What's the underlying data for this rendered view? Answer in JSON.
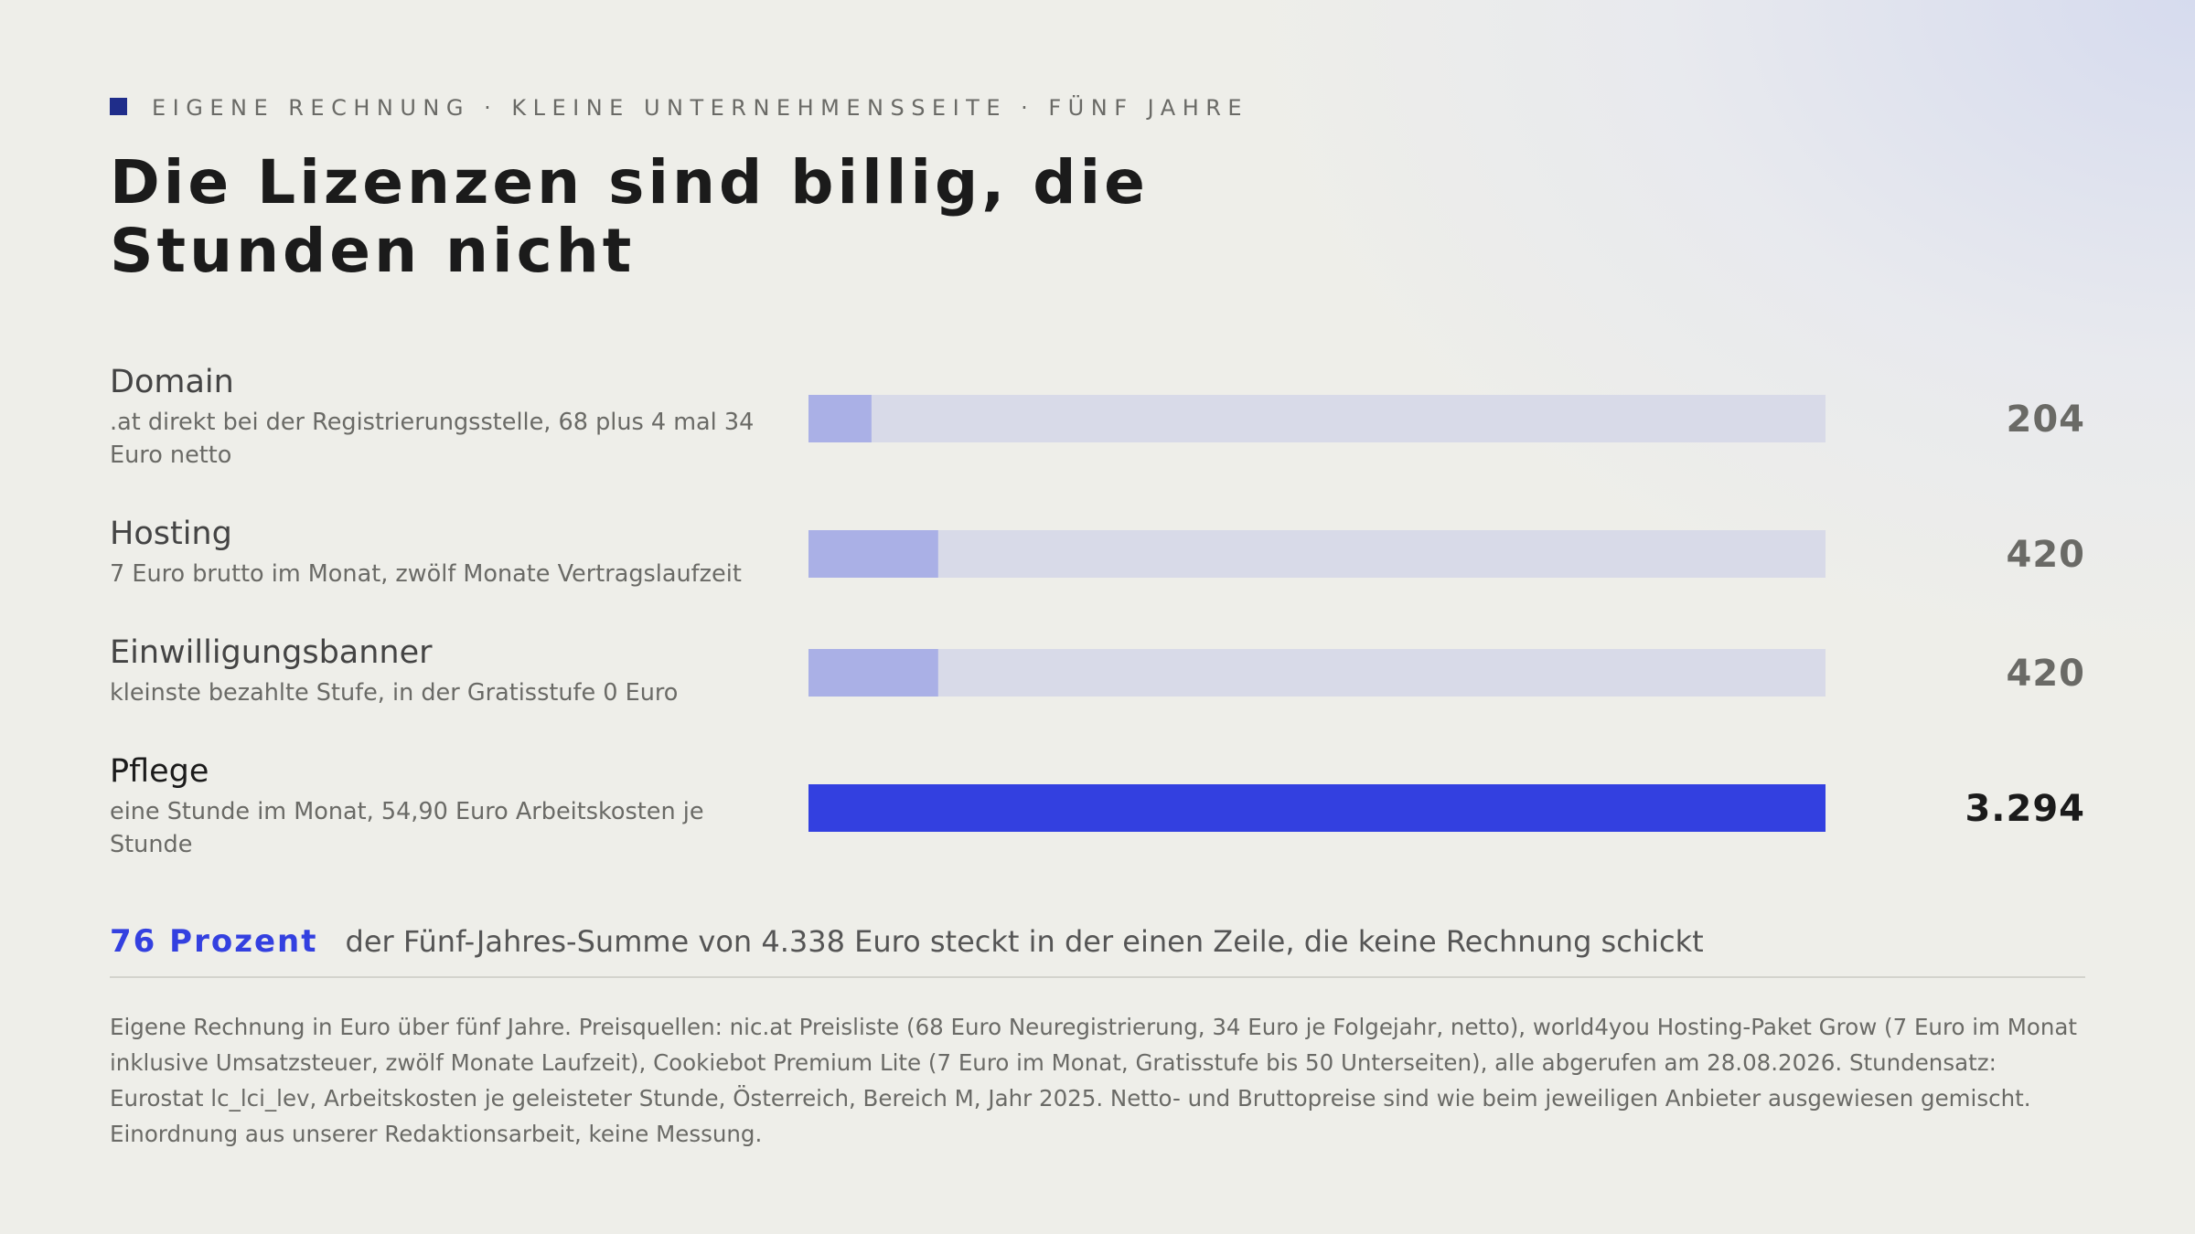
{
  "kicker": "EIGENE RECHNUNG · KLEINE UNTERNEHMENSSEITE · FÜNF JAHRE",
  "title": "Die Lizenzen sind billig, die Stunden nicht",
  "colors": {
    "accent": "#3340e0",
    "accent_dark": "#1f2d8a",
    "bar_light": "#aab0e6",
    "track": "#d8dae8"
  },
  "rows": [
    {
      "label": "Domain",
      "sub": ".at direkt bei der Registrierungsstelle, 68 plus 4 mal 34 Euro netto",
      "value_label": "204"
    },
    {
      "label": "Hosting",
      "sub": "7 Euro brutto im Monat, zwölf Monate Vertragslaufzeit",
      "value_label": "420"
    },
    {
      "label": "Einwilligungsbanner",
      "sub": "kleinste bezahlte Stufe, in der Gratisstufe 0 Euro",
      "value_label": "420"
    },
    {
      "label": "Pflege",
      "sub": "eine Stunde im Monat, 54,90 Euro Arbeitskosten je Stunde",
      "value_label": "3.294"
    }
  ],
  "chart_data": {
    "type": "bar",
    "orientation": "horizontal",
    "categories": [
      "Domain",
      "Hosting",
      "Einwilligungsbanner",
      "Pflege"
    ],
    "values": [
      204,
      420,
      420,
      3294
    ],
    "highlight_category": "Pflege",
    "xlim": [
      0,
      3294
    ],
    "grid": false,
    "legend": "none"
  },
  "highlight": {
    "number": "76 Prozent",
    "text": "der Fünf-Jahres-Summe von 4.338 Euro steckt in der einen Zeile, die keine Rechnung schickt"
  },
  "footnote": "Eigene Rechnung in Euro über fünf Jahre. Preisquellen: nic.at Preisliste (68 Euro Neuregistrierung, 34 Euro je Folgejahr, netto), world4you Hosting-Paket Grow (7 Euro im Monat inklusive Umsatzsteuer, zwölf Monate Laufzeit), Cookiebot Premium Lite (7 Euro im Monat, Gratisstufe bis 50 Unterseiten), alle abgerufen am 28.08.2026. Stundensatz: Eurostat lc_lci_lev, Arbeitskosten je geleisteter Stunde, Österreich, Bereich M, Jahr 2025. Netto- und Bruttopreise sind wie beim jeweiligen Anbieter ausgewiesen gemischt. Einordnung aus unserer Redaktionsarbeit, keine Messung."
}
